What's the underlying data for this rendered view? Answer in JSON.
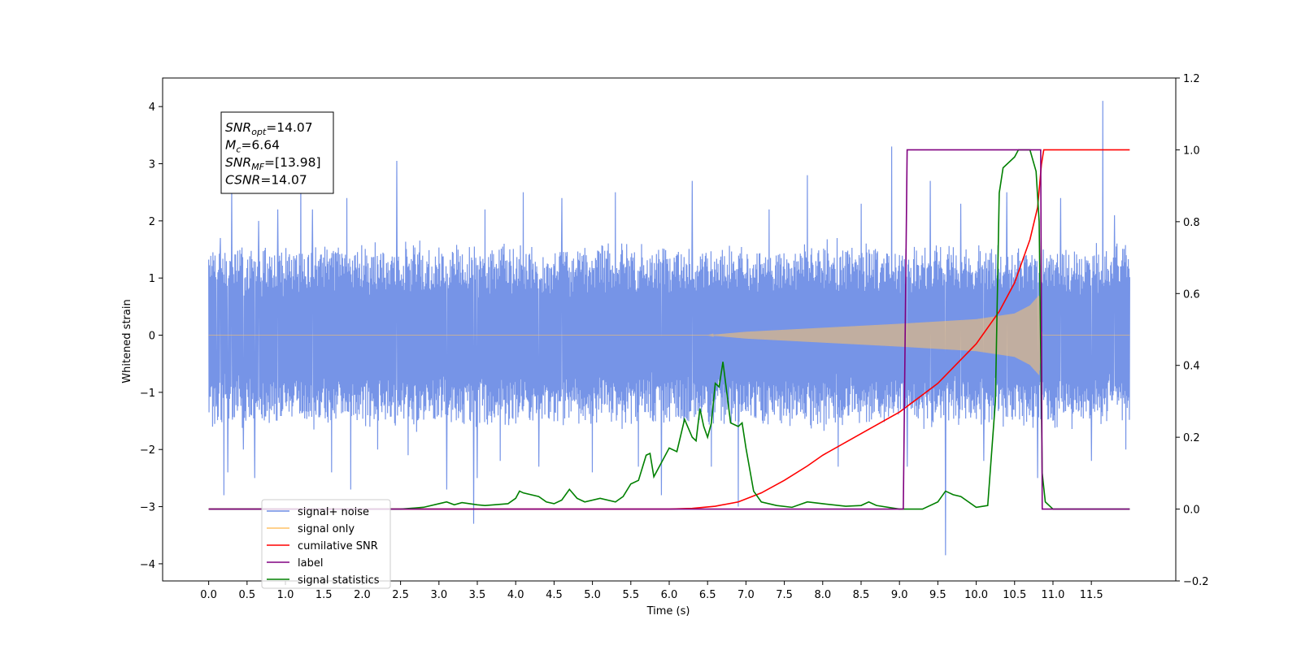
{
  "chart_data": {
    "type": "line",
    "xlabel": "Time (s)",
    "ylabel": "Whitened strain",
    "xlim": [
      -0.6,
      12.6
    ],
    "ylim": [
      -4.3,
      4.5
    ],
    "y2lim": [
      -0.2,
      1.2
    ],
    "x_ticks": [
      "0.0",
      "0.5",
      "1.0",
      "1.5",
      "2.0",
      "2.5",
      "3.0",
      "3.5",
      "4.0",
      "4.5",
      "5.0",
      "5.5",
      "6.0",
      "6.5",
      "7.0",
      "7.5",
      "8.0",
      "8.5",
      "9.0",
      "9.5",
      "10.0",
      "10.5",
      "11.0",
      "11.5"
    ],
    "y_ticks": [
      "4",
      "3",
      "2",
      "1",
      "0",
      "−1",
      "−2",
      "−3",
      "−4"
    ],
    "y2_ticks": [
      "1.2",
      "1.0",
      "0.8",
      "0.6",
      "0.4",
      "0.2",
      "0.0",
      "−0.2"
    ],
    "annotation": {
      "lines": [
        {
          "base": "SNR",
          "sub": "opt",
          "rest": "=14.07"
        },
        {
          "base": "M",
          "sub": "c",
          "rest": "=6.64"
        },
        {
          "base": "SNR",
          "sub": "MF",
          "rest": "=[13.98]"
        },
        {
          "base": "CSNR",
          "sub": "",
          "rest": "=14.07"
        }
      ]
    },
    "legend": {
      "position": "lower-left",
      "entries": [
        {
          "label": "signal+ noise",
          "color": "#6f8ee6"
        },
        {
          "label": "signal only",
          "color": "#ffc266"
        },
        {
          "label": "cumilative SNR",
          "color": "#ff0000"
        },
        {
          "label": "label",
          "color": "#800080"
        },
        {
          "label": "signal statistics",
          "color": "#008000"
        }
      ]
    },
    "series": [
      {
        "name": "signal+ noise",
        "axis": "left",
        "color": "#6f8ee6",
        "x_range": [
          0.0,
          12.0
        ],
        "amplitude_envelope": [
          [
            0.0,
            1.5
          ],
          [
            12.0,
            1.5
          ]
        ],
        "outliers": [
          {
            "x": 0.05,
            "y": -1.6
          },
          {
            "x": 0.1,
            "y": -1.2
          },
          {
            "x": 0.15,
            "y": 1.7
          },
          {
            "x": 0.2,
            "y": -2.8
          },
          {
            "x": 0.25,
            "y": -2.4
          },
          {
            "x": 0.3,
            "y": 2.6
          },
          {
            "x": 0.45,
            "y": -2.0
          },
          {
            "x": 0.6,
            "y": -2.5
          },
          {
            "x": 0.65,
            "y": 2.0
          },
          {
            "x": 0.9,
            "y": 2.2
          },
          {
            "x": 1.2,
            "y": 2.8
          },
          {
            "x": 1.35,
            "y": 2.2
          },
          {
            "x": 1.6,
            "y": -2.4
          },
          {
            "x": 1.8,
            "y": 2.4
          },
          {
            "x": 1.85,
            "y": -2.7
          },
          {
            "x": 2.2,
            "y": -2.0
          },
          {
            "x": 2.45,
            "y": 3.05
          },
          {
            "x": 2.6,
            "y": -2.1
          },
          {
            "x": 3.1,
            "y": -2.7
          },
          {
            "x": 3.45,
            "y": -3.3
          },
          {
            "x": 3.5,
            "y": -2.5
          },
          {
            "x": 3.6,
            "y": 2.2
          },
          {
            "x": 3.8,
            "y": -2.2
          },
          {
            "x": 4.1,
            "y": 2.5
          },
          {
            "x": 4.3,
            "y": -2.3
          },
          {
            "x": 4.6,
            "y": 2.4
          },
          {
            "x": 5.0,
            "y": -2.4
          },
          {
            "x": 5.3,
            "y": 2.5
          },
          {
            "x": 5.6,
            "y": -2.3
          },
          {
            "x": 5.9,
            "y": -2.8
          },
          {
            "x": 6.3,
            "y": 2.7
          },
          {
            "x": 6.55,
            "y": -2.3
          },
          {
            "x": 6.9,
            "y": -3.0
          },
          {
            "x": 7.3,
            "y": 2.2
          },
          {
            "x": 7.8,
            "y": 2.8
          },
          {
            "x": 8.2,
            "y": -2.3
          },
          {
            "x": 8.5,
            "y": 2.3
          },
          {
            "x": 8.9,
            "y": 3.3
          },
          {
            "x": 9.1,
            "y": -2.3
          },
          {
            "x": 9.4,
            "y": 2.7
          },
          {
            "x": 9.6,
            "y": -3.85
          },
          {
            "x": 9.8,
            "y": 2.3
          },
          {
            "x": 10.1,
            "y": -2.2
          },
          {
            "x": 10.4,
            "y": 2.5
          },
          {
            "x": 10.8,
            "y": -2.5
          },
          {
            "x": 11.1,
            "y": 2.4
          },
          {
            "x": 11.5,
            "y": -2.2
          },
          {
            "x": 11.65,
            "y": 4.1
          },
          {
            "x": 11.8,
            "y": 2.1
          },
          {
            "x": 11.95,
            "y": -2.0
          }
        ]
      },
      {
        "name": "signal only",
        "axis": "left",
        "color": "#ffc266",
        "x_range": [
          0.0,
          12.0
        ],
        "amplitude_envelope": [
          [
            0.0,
            0.0
          ],
          [
            6.5,
            0.0
          ],
          [
            7.0,
            0.06
          ],
          [
            8.0,
            0.13
          ],
          [
            9.0,
            0.2
          ],
          [
            10.0,
            0.28
          ],
          [
            10.5,
            0.38
          ],
          [
            10.7,
            0.52
          ],
          [
            10.82,
            0.7
          ],
          [
            10.86,
            0.0
          ],
          [
            12.0,
            0.0
          ]
        ]
      },
      {
        "name": "cumilative SNR",
        "axis": "right",
        "color": "#ff0000",
        "points": [
          [
            0.0,
            0.0
          ],
          [
            6.0,
            0.0
          ],
          [
            6.3,
            0.002
          ],
          [
            6.6,
            0.008
          ],
          [
            6.9,
            0.02
          ],
          [
            7.2,
            0.045
          ],
          [
            7.5,
            0.08
          ],
          [
            7.8,
            0.12
          ],
          [
            8.0,
            0.15
          ],
          [
            8.5,
            0.21
          ],
          [
            9.0,
            0.27
          ],
          [
            9.5,
            0.35
          ],
          [
            10.0,
            0.46
          ],
          [
            10.3,
            0.55
          ],
          [
            10.5,
            0.63
          ],
          [
            10.7,
            0.75
          ],
          [
            10.8,
            0.84
          ],
          [
            10.85,
            0.96
          ],
          [
            10.88,
            1.0
          ],
          [
            12.0,
            1.0
          ]
        ]
      },
      {
        "name": "label",
        "axis": "right",
        "color": "#800080",
        "points": [
          [
            0.0,
            0.0
          ],
          [
            9.05,
            0.0
          ],
          [
            9.1,
            1.0
          ],
          [
            10.84,
            1.0
          ],
          [
            10.86,
            0.0
          ],
          [
            12.0,
            0.0
          ]
        ]
      },
      {
        "name": "signal statistics",
        "axis": "right",
        "color": "#008000",
        "points": [
          [
            0.0,
            0.0
          ],
          [
            2.5,
            0.0
          ],
          [
            2.8,
            0.005
          ],
          [
            3.0,
            0.015
          ],
          [
            3.1,
            0.02
          ],
          [
            3.2,
            0.012
          ],
          [
            3.3,
            0.018
          ],
          [
            3.5,
            0.012
          ],
          [
            3.6,
            0.01
          ],
          [
            3.9,
            0.015
          ],
          [
            4.0,
            0.03
          ],
          [
            4.05,
            0.05
          ],
          [
            4.1,
            0.045
          ],
          [
            4.3,
            0.035
          ],
          [
            4.4,
            0.02
          ],
          [
            4.5,
            0.015
          ],
          [
            4.6,
            0.025
          ],
          [
            4.7,
            0.055
          ],
          [
            4.8,
            0.03
          ],
          [
            4.9,
            0.02
          ],
          [
            5.1,
            0.03
          ],
          [
            5.3,
            0.02
          ],
          [
            5.4,
            0.035
          ],
          [
            5.5,
            0.07
          ],
          [
            5.6,
            0.08
          ],
          [
            5.7,
            0.15
          ],
          [
            5.75,
            0.155
          ],
          [
            5.8,
            0.09
          ],
          [
            5.9,
            0.13
          ],
          [
            6.0,
            0.17
          ],
          [
            6.1,
            0.16
          ],
          [
            6.2,
            0.25
          ],
          [
            6.3,
            0.2
          ],
          [
            6.35,
            0.19
          ],
          [
            6.4,
            0.28
          ],
          [
            6.45,
            0.23
          ],
          [
            6.5,
            0.2
          ],
          [
            6.55,
            0.24
          ],
          [
            6.6,
            0.35
          ],
          [
            6.65,
            0.34
          ],
          [
            6.7,
            0.41
          ],
          [
            6.8,
            0.24
          ],
          [
            6.9,
            0.23
          ],
          [
            6.95,
            0.24
          ],
          [
            7.0,
            0.17
          ],
          [
            7.1,
            0.05
          ],
          [
            7.2,
            0.02
          ],
          [
            7.4,
            0.01
          ],
          [
            7.6,
            0.005
          ],
          [
            7.8,
            0.02
          ],
          [
            8.0,
            0.015
          ],
          [
            8.3,
            0.008
          ],
          [
            8.5,
            0.01
          ],
          [
            8.6,
            0.02
          ],
          [
            8.7,
            0.01
          ],
          [
            9.0,
            0.0
          ],
          [
            9.3,
            0.0
          ],
          [
            9.5,
            0.02
          ],
          [
            9.6,
            0.05
          ],
          [
            9.7,
            0.04
          ],
          [
            9.8,
            0.035
          ],
          [
            10.0,
            0.005
          ],
          [
            10.15,
            0.01
          ],
          [
            10.25,
            0.3
          ],
          [
            10.3,
            0.88
          ],
          [
            10.35,
            0.95
          ],
          [
            10.5,
            0.98
          ],
          [
            10.55,
            1.0
          ],
          [
            10.7,
            1.0
          ],
          [
            10.78,
            0.94
          ],
          [
            10.82,
            0.8
          ],
          [
            10.86,
            0.1
          ],
          [
            10.9,
            0.02
          ],
          [
            11.0,
            0.0
          ],
          [
            12.0,
            0.0
          ]
        ]
      }
    ]
  }
}
